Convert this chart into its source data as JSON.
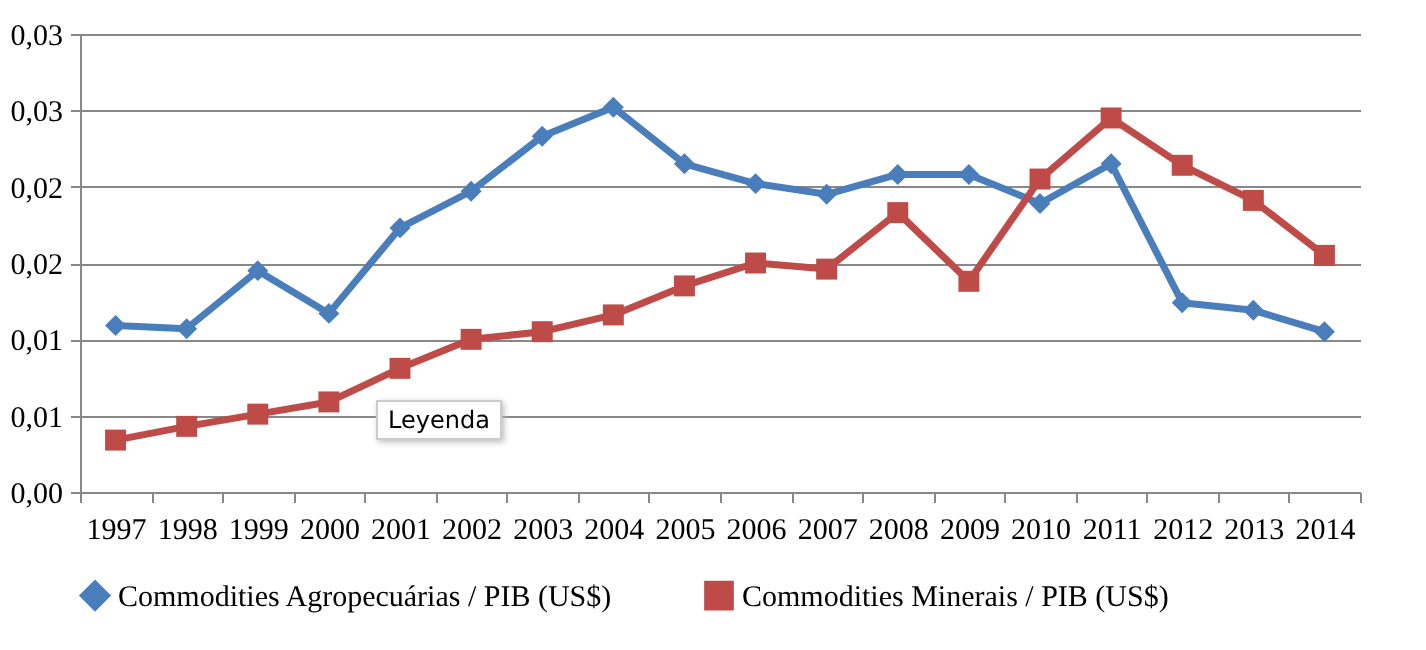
{
  "chart_data": {
    "type": "line",
    "categories": [
      "1997",
      "1998",
      "1999",
      "2000",
      "2001",
      "2002",
      "2003",
      "2004",
      "2005",
      "2006",
      "2007",
      "2008",
      "2009",
      "2010",
      "2011",
      "2012",
      "2013",
      "2014"
    ],
    "series": [
      {
        "name": "Commodities Agropecuárias / PIB (US$)",
        "color": "#4a7ebb",
        "marker": "diamond",
        "values": [
          0.0109,
          0.0107,
          0.0145,
          0.0117,
          0.0173,
          0.0197,
          0.0233,
          0.0252,
          0.0215,
          0.0202,
          0.0195,
          0.0208,
          0.0208,
          0.0189,
          0.0215,
          0.0124,
          0.0119,
          0.0105
        ]
      },
      {
        "name": "Commodities Minerais / PIB (US$)",
        "color": "#be4b48",
        "marker": "square",
        "values": [
          0.0034,
          0.0043,
          0.0051,
          0.0059,
          0.0081,
          0.01,
          0.0105,
          0.0116,
          0.0135,
          0.015,
          0.0146,
          0.0183,
          0.0138,
          0.0205,
          0.0245,
          0.0214,
          0.0191,
          0.0155
        ]
      }
    ],
    "ylim": [
      0,
      0.03
    ],
    "yticks": [
      {
        "value": 0,
        "label": "0,00"
      },
      {
        "value": 0.005,
        "label": "0,01"
      },
      {
        "value": 0.01,
        "label": "0,01"
      },
      {
        "value": 0.015,
        "label": "0,02"
      },
      {
        "value": 0.02,
        "label": "0,02"
      },
      {
        "value": 0.025,
        "label": "0,03"
      },
      {
        "value": 0.03,
        "label": "0,03"
      }
    ],
    "grid": "y",
    "legend": "bottom",
    "line_style": "solid",
    "annotations": [
      "Leyenda"
    ]
  }
}
